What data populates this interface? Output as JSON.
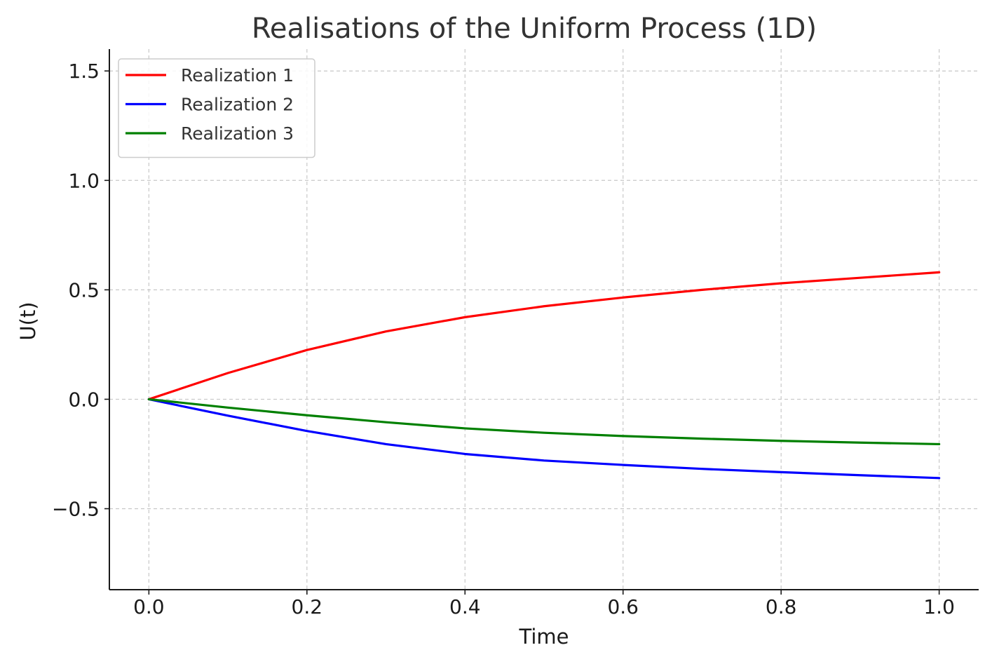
{
  "chart_data": {
    "type": "line",
    "title": "Realisations of the Uniform Process (1D)",
    "xlabel": "Time",
    "ylabel": "U(t)",
    "xlim": [
      -0.05,
      1.05
    ],
    "ylim": [
      -0.87,
      1.6
    ],
    "xticks": [
      0.0,
      0.2,
      0.4,
      0.6,
      0.8,
      1.0
    ],
    "xtick_labels": [
      "0.0",
      "0.2",
      "0.4",
      "0.6",
      "0.8",
      "1.0"
    ],
    "yticks": [
      -0.5,
      0.0,
      0.5,
      1.0,
      1.5
    ],
    "ytick_labels": [
      "−0.5",
      "0.0",
      "0.5",
      "1.0",
      "1.5"
    ],
    "grid": true,
    "legend_position": "top-left",
    "x": [
      0.0,
      0.1,
      0.2,
      0.3,
      0.4,
      0.5,
      0.6,
      0.7,
      0.8,
      0.9,
      1.0
    ],
    "series": [
      {
        "name": "Realization 1",
        "color": "#ff0000",
        "values": [
          0.0,
          0.12,
          0.225,
          0.31,
          0.375,
          0.425,
          0.465,
          0.5,
          0.53,
          0.555,
          0.58
        ]
      },
      {
        "name": "Realization 2",
        "color": "#0000ff",
        "values": [
          0.0,
          -0.075,
          -0.145,
          -0.205,
          -0.25,
          -0.28,
          -0.3,
          -0.318,
          -0.333,
          -0.347,
          -0.36
        ]
      },
      {
        "name": "Realization 3",
        "color": "#008000",
        "values": [
          0.0,
          -0.038,
          -0.073,
          -0.105,
          -0.133,
          -0.153,
          -0.168,
          -0.18,
          -0.19,
          -0.198,
          -0.205
        ]
      }
    ]
  }
}
